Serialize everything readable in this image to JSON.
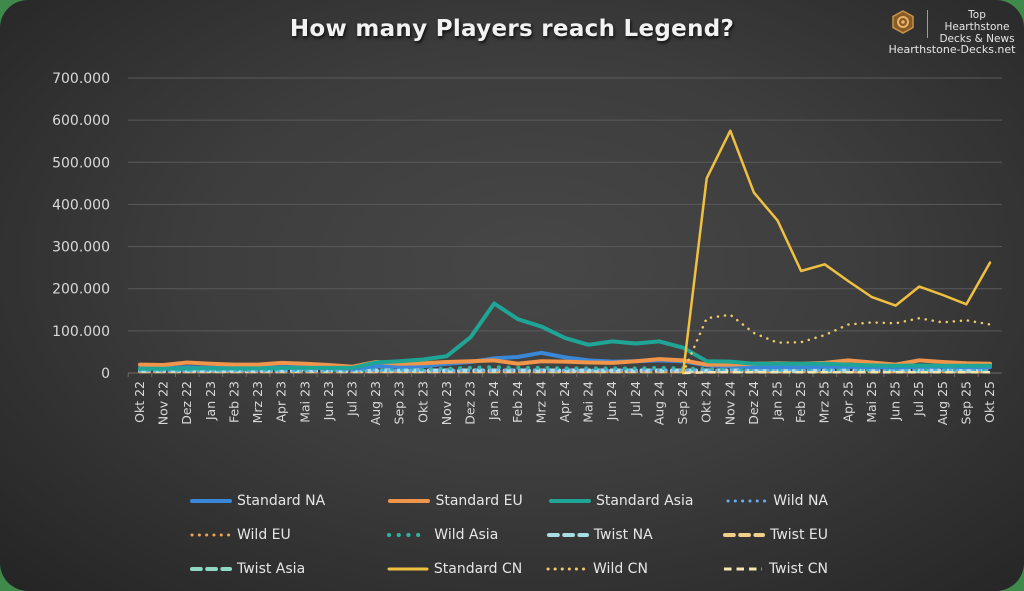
{
  "header": {
    "title": "How many Players reach Legend?",
    "brand": {
      "line1": "Top Hearthstone",
      "line2": "Decks & News",
      "url": "Hearthstone-Decks.net",
      "accent_color": "#c8934a"
    }
  },
  "chart_data": {
    "type": "line",
    "title": "How many Players reach Legend?",
    "xlabel": "",
    "ylabel": "",
    "ylim": [
      0,
      700000
    ],
    "yticks": [
      0,
      100000,
      200000,
      300000,
      400000,
      500000,
      600000,
      700000
    ],
    "ytick_labels": [
      "0",
      "100.000",
      "200.000",
      "300.000",
      "400.000",
      "500.000",
      "600.000",
      "700.000"
    ],
    "grid": "horizontal",
    "legend_position": "bottom",
    "categories": [
      "Okt 22",
      "Nov 22",
      "Dez 22",
      "Jan 23",
      "Feb 23",
      "Mrz 23",
      "Apr 23",
      "Mai 23",
      "Jun 23",
      "Jul 23",
      "Aug 23",
      "Sep 23",
      "Okt 23",
      "Nov 23",
      "Dez 23",
      "Jan 24",
      "Feb 24",
      "Mrz 24",
      "Apr 24",
      "Mai 24",
      "Jun 24",
      "Jul 24",
      "Aug 24",
      "Sep 24",
      "Okt 24",
      "Nov 24",
      "Dez 24",
      "Jan 25",
      "Feb 25",
      "Mrz 25",
      "Apr 25",
      "Mai 25",
      "Jun 25",
      "Jul 25",
      "Aug 25",
      "Sep 25",
      "Okt 25"
    ],
    "series": [
      {
        "name": "Standard NA",
        "color": "#3a86d8",
        "style": "solid",
        "width": 4,
        "values": [
          12000,
          11000,
          14000,
          12000,
          12000,
          12000,
          14000,
          13000,
          12000,
          10000,
          16000,
          15000,
          16000,
          22000,
          26000,
          35000,
          38000,
          48000,
          37000,
          30000,
          27000,
          28000,
          30000,
          28000,
          18000,
          16000,
          14000,
          14000,
          14000,
          15000,
          15000,
          14000,
          13000,
          15000,
          15000,
          14000,
          14000
        ]
      },
      {
        "name": "Standard EU",
        "color": "#f0954a",
        "style": "solid",
        "width": 4,
        "values": [
          20000,
          19000,
          25000,
          22000,
          20000,
          20000,
          24000,
          22000,
          19000,
          15000,
          26000,
          22000,
          23000,
          26000,
          28000,
          30000,
          22000,
          28000,
          27000,
          25000,
          24000,
          28000,
          33000,
          30000,
          20000,
          20000,
          22000,
          23000,
          22000,
          24000,
          30000,
          25000,
          20000,
          30000,
          26000,
          23000,
          22000
        ]
      },
      {
        "name": "Standard Asia",
        "color": "#1fa596",
        "style": "solid",
        "width": 4,
        "values": [
          10000,
          10000,
          11000,
          11000,
          11000,
          11000,
          12000,
          12000,
          12000,
          12000,
          25000,
          28000,
          32000,
          40000,
          85000,
          165000,
          128000,
          110000,
          83000,
          67000,
          75000,
          70000,
          75000,
          60000,
          28000,
          27000,
          22000,
          22000,
          22000,
          22000,
          20000,
          18000,
          17000,
          18000,
          17000,
          17000,
          17000
        ]
      },
      {
        "name": "Wild NA",
        "color": "#6aaaf0",
        "style": "dotted",
        "width": 3,
        "values": [
          5000,
          5000,
          5000,
          5000,
          5000,
          5000,
          5000,
          5000,
          5000,
          5000,
          6000,
          6000,
          6000,
          6000,
          6000,
          7000,
          7000,
          7000,
          7000,
          7000,
          7000,
          7000,
          7000,
          7000,
          7000,
          7000,
          7000,
          7000,
          7000,
          7000,
          7000,
          7000,
          7000,
          7000,
          7000,
          7000,
          7000
        ]
      },
      {
        "name": "Wild EU",
        "color": "#f0a24e",
        "style": "dotted",
        "width": 3,
        "values": [
          3000,
          3000,
          3000,
          3000,
          3000,
          3000,
          3000,
          3000,
          3000,
          3000,
          3000,
          3000,
          3000,
          3000,
          3000,
          3000,
          3000,
          3000,
          3000,
          3000,
          3000,
          3000,
          3000,
          3000,
          3000,
          3000,
          3000,
          3000,
          3000,
          3000,
          3000,
          3000,
          3000,
          3000,
          3000,
          3000,
          3000
        ]
      },
      {
        "name": "Wild Asia",
        "color": "#2fb4a0",
        "style": "dotted",
        "width": 4,
        "values": [
          8000,
          8000,
          8000,
          8000,
          8000,
          8000,
          8000,
          8000,
          8000,
          8000,
          8000,
          9000,
          9000,
          10000,
          12000,
          14000,
          12000,
          12000,
          11000,
          11000,
          11000,
          11000,
          12000,
          11000,
          9000,
          9000,
          8000,
          8000,
          8000,
          8000,
          8000,
          8000,
          8000,
          8000,
          8000,
          8000,
          8000
        ]
      },
      {
        "name": "Twist NA",
        "color": "#a8dde6",
        "style": "dashed",
        "width": 4,
        "values": [
          6000,
          6000,
          6000,
          6000,
          6000,
          6000,
          6000,
          6000,
          6000,
          6000,
          6000,
          6000,
          6000,
          6000,
          6000,
          6000,
          6000,
          6000,
          6000,
          6000,
          6000,
          6000,
          6000,
          6000,
          6000,
          6000,
          6000,
          6000,
          6000,
          6000,
          6000,
          6000,
          6000,
          6000,
          6000,
          6000,
          6000
        ]
      },
      {
        "name": "Twist EU",
        "color": "#f3d08a",
        "style": "dashed",
        "width": 4,
        "values": [
          4000,
          4000,
          4000,
          4000,
          4000,
          4000,
          4000,
          4000,
          4000,
          4000,
          4000,
          4000,
          4000,
          4000,
          4000,
          4000,
          4000,
          4000,
          4000,
          4000,
          4000,
          4000,
          4000,
          4000,
          4000,
          4000,
          4000,
          4000,
          4000,
          4000,
          4000,
          4000,
          4000,
          4000,
          4000,
          4000,
          4000
        ]
      },
      {
        "name": "Twist Asia",
        "color": "#8fd8c4",
        "style": "dashed",
        "width": 4,
        "values": [
          5000,
          5000,
          5000,
          5000,
          5000,
          5000,
          5000,
          5000,
          5000,
          5000,
          5000,
          5000,
          5000,
          5000,
          5000,
          5000,
          5000,
          5000,
          5000,
          5000,
          5000,
          5000,
          5000,
          5000,
          5000,
          5000,
          5000,
          5000,
          5000,
          5000,
          5000,
          5000,
          5000,
          5000,
          5000,
          5000,
          5000
        ]
      },
      {
        "name": "Standard CN",
        "color": "#f0c040",
        "style": "solid",
        "width": 2.5,
        "values": [
          null,
          null,
          null,
          null,
          null,
          null,
          null,
          null,
          null,
          null,
          null,
          null,
          null,
          null,
          null,
          null,
          null,
          null,
          null,
          null,
          null,
          null,
          null,
          0,
          462000,
          575000,
          428000,
          362000,
          242000,
          258000,
          218000,
          180000,
          160000,
          205000,
          185000,
          163000,
          262000
        ]
      },
      {
        "name": "Wild CN",
        "color": "#f0c96a",
        "style": "dotted-fine",
        "width": 2.5,
        "values": [
          null,
          null,
          null,
          null,
          null,
          null,
          null,
          null,
          null,
          null,
          null,
          null,
          null,
          null,
          null,
          null,
          null,
          null,
          null,
          null,
          null,
          null,
          null,
          0,
          130000,
          138000,
          95000,
          72000,
          73000,
          90000,
          115000,
          120000,
          118000,
          130000,
          120000,
          125000,
          115000
        ]
      },
      {
        "name": "Twist CN",
        "color": "#f6e6b0",
        "style": "dashed-fine",
        "width": 2.5,
        "values": [
          null,
          null,
          null,
          null,
          null,
          null,
          null,
          null,
          null,
          null,
          null,
          null,
          null,
          null,
          null,
          null,
          null,
          null,
          null,
          null,
          null,
          null,
          null,
          0,
          2000,
          2000,
          2000,
          2000,
          2000,
          2000,
          2000,
          2000,
          2000,
          2000,
          2000,
          2000,
          2000
        ]
      }
    ]
  },
  "legend": {
    "rows": [
      [
        {
          "idx": 0,
          "label": "Standard NA"
        },
        {
          "idx": 1,
          "label": "Standard EU"
        },
        {
          "idx": 2,
          "label": "Standard Asia"
        },
        {
          "idx": 3,
          "label": "Wild NA"
        }
      ],
      [
        {
          "idx": 4,
          "label": "Wild EU"
        },
        {
          "idx": 5,
          "label": "Wild Asia"
        },
        {
          "idx": 6,
          "label": "Twist NA"
        },
        {
          "idx": 7,
          "label": "Twist EU"
        }
      ],
      [
        {
          "idx": 8,
          "label": "Twist Asia"
        },
        {
          "idx": 9,
          "label": "Standard CN"
        },
        {
          "idx": 10,
          "label": "Wild CN"
        },
        {
          "idx": 11,
          "label": "Twist CN"
        }
      ]
    ]
  }
}
